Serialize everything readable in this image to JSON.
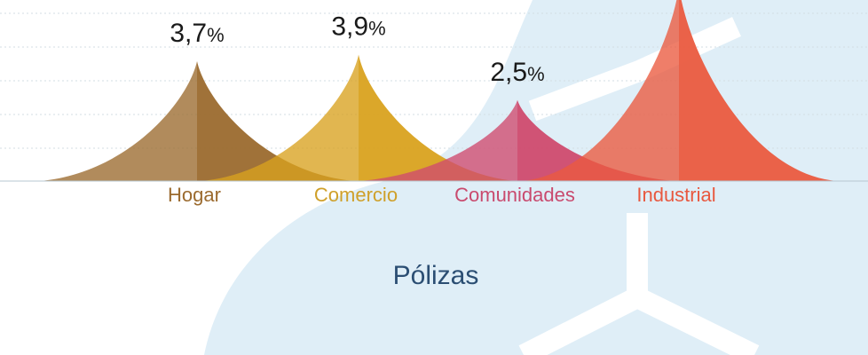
{
  "chart_data": {
    "type": "area",
    "title": "",
    "subtitle": "Pólizas",
    "categories": [
      "Hogar",
      "Comercio",
      "Comunidades",
      "Industrial"
    ],
    "values": [
      3.7,
      3.9,
      2.5,
      6.0
    ],
    "value_labels": [
      "3,7",
      "3,9",
      "2,5",
      ""
    ],
    "value_suffix": "%",
    "colors": [
      "#9b6a2e",
      "#d9a21f",
      "#cf4a6e",
      "#ea5a3f"
    ],
    "label_colors": [
      "#9b6a2e",
      "#cfa02a",
      "#c94a6e",
      "#e8583f"
    ],
    "grid": true,
    "legend": "none"
  },
  "background": {
    "shape_color": "#dfeef7",
    "stroke_color": "#ffffff"
  }
}
